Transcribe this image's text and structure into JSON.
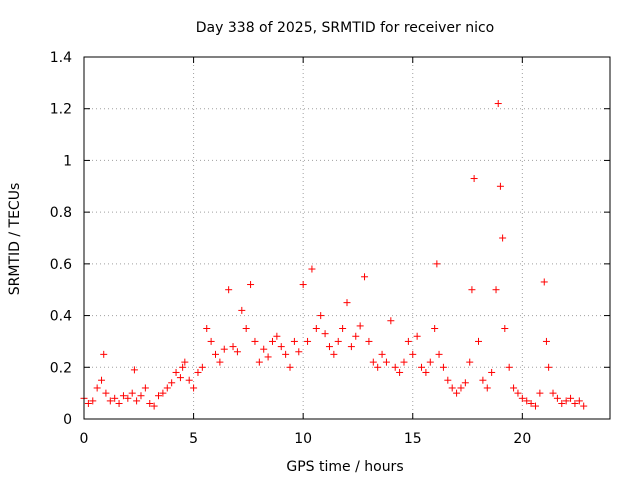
{
  "chart_data": {
    "type": "scatter",
    "title": "Day 338 of 2025, SRMTID for receiver nico",
    "xlabel": "GPS time / hours",
    "ylabel": "SRMTID / TECUs",
    "xlim": [
      0,
      24
    ],
    "ylim": [
      0,
      1.4
    ],
    "xticks": [
      0,
      5,
      10,
      15,
      20
    ],
    "xtick_labels": [
      "0",
      "5",
      "10",
      "15",
      "20"
    ],
    "yticks": [
      0,
      0.2,
      0.4,
      0.6,
      0.8,
      1,
      1.2,
      1.4
    ],
    "ytick_labels": [
      "0",
      "0.2",
      "0.4",
      "0.6",
      "0.8",
      "1",
      "1.2",
      "1.4"
    ],
    "grid": true,
    "marker": "+",
    "color": "#ff0000",
    "series": [
      {
        "name": "SRMTID",
        "x": [
          0.0,
          0.2,
          0.4,
          0.6,
          0.8,
          0.9,
          1.0,
          1.2,
          1.4,
          1.6,
          1.8,
          2.0,
          2.2,
          2.3,
          2.4,
          2.6,
          2.8,
          3.0,
          3.2,
          3.4,
          3.6,
          3.8,
          4.0,
          4.2,
          4.4,
          4.5,
          4.6,
          4.8,
          5.0,
          5.2,
          5.4,
          5.6,
          5.8,
          6.0,
          6.2,
          6.4,
          6.6,
          6.8,
          7.0,
          7.2,
          7.4,
          7.6,
          7.8,
          8.0,
          8.2,
          8.4,
          8.6,
          8.8,
          9.0,
          9.2,
          9.4,
          9.6,
          9.8,
          10.0,
          10.2,
          10.4,
          10.6,
          10.8,
          11.0,
          11.2,
          11.4,
          11.6,
          11.8,
          12.0,
          12.2,
          12.4,
          12.6,
          12.8,
          13.0,
          13.2,
          13.4,
          13.6,
          13.8,
          14.0,
          14.2,
          14.4,
          14.6,
          14.8,
          15.0,
          15.2,
          15.4,
          15.6,
          15.8,
          16.0,
          16.1,
          16.2,
          16.4,
          16.6,
          16.8,
          17.0,
          17.2,
          17.4,
          17.6,
          17.7,
          17.8,
          18.0,
          18.2,
          18.4,
          18.6,
          18.8,
          18.9,
          19.0,
          19.1,
          19.2,
          19.4,
          19.6,
          19.8,
          20.0,
          20.2,
          20.4,
          20.6,
          20.8,
          21.0,
          21.1,
          21.2,
          21.4,
          21.6,
          21.8,
          22.0,
          22.2,
          22.4,
          22.6,
          22.8
        ],
        "y": [
          0.08,
          0.06,
          0.07,
          0.12,
          0.15,
          0.25,
          0.1,
          0.07,
          0.08,
          0.06,
          0.09,
          0.08,
          0.1,
          0.19,
          0.07,
          0.09,
          0.12,
          0.06,
          0.05,
          0.09,
          0.1,
          0.12,
          0.14,
          0.18,
          0.16,
          0.2,
          0.22,
          0.15,
          0.12,
          0.18,
          0.2,
          0.35,
          0.3,
          0.25,
          0.22,
          0.27,
          0.5,
          0.28,
          0.26,
          0.42,
          0.35,
          0.52,
          0.3,
          0.22,
          0.27,
          0.24,
          0.3,
          0.32,
          0.28,
          0.25,
          0.2,
          0.3,
          0.26,
          0.52,
          0.3,
          0.58,
          0.35,
          0.4,
          0.33,
          0.28,
          0.25,
          0.3,
          0.35,
          0.45,
          0.28,
          0.32,
          0.36,
          0.55,
          0.3,
          0.22,
          0.2,
          0.25,
          0.22,
          0.38,
          0.2,
          0.18,
          0.22,
          0.3,
          0.25,
          0.32,
          0.2,
          0.18,
          0.22,
          0.35,
          0.6,
          0.25,
          0.2,
          0.15,
          0.12,
          0.1,
          0.12,
          0.14,
          0.22,
          0.5,
          0.93,
          0.3,
          0.15,
          0.12,
          0.18,
          0.5,
          1.22,
          0.9,
          0.7,
          0.35,
          0.2,
          0.12,
          0.1,
          0.08,
          0.07,
          0.06,
          0.05,
          0.1,
          0.53,
          0.3,
          0.2,
          0.1,
          0.08,
          0.06,
          0.07,
          0.08,
          0.06,
          0.07,
          0.05
        ]
      }
    ]
  }
}
